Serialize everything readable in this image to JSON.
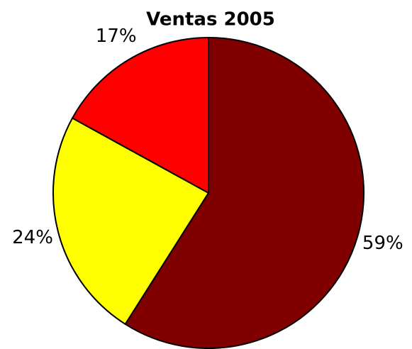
{
  "chart_data": {
    "type": "pie",
    "title": "Ventas 2005",
    "values": [
      59,
      24,
      17
    ],
    "value_labels": [
      "59%",
      "24%",
      "17%"
    ],
    "colors": [
      "#800000",
      "#ffff00",
      "#ff0000"
    ]
  }
}
